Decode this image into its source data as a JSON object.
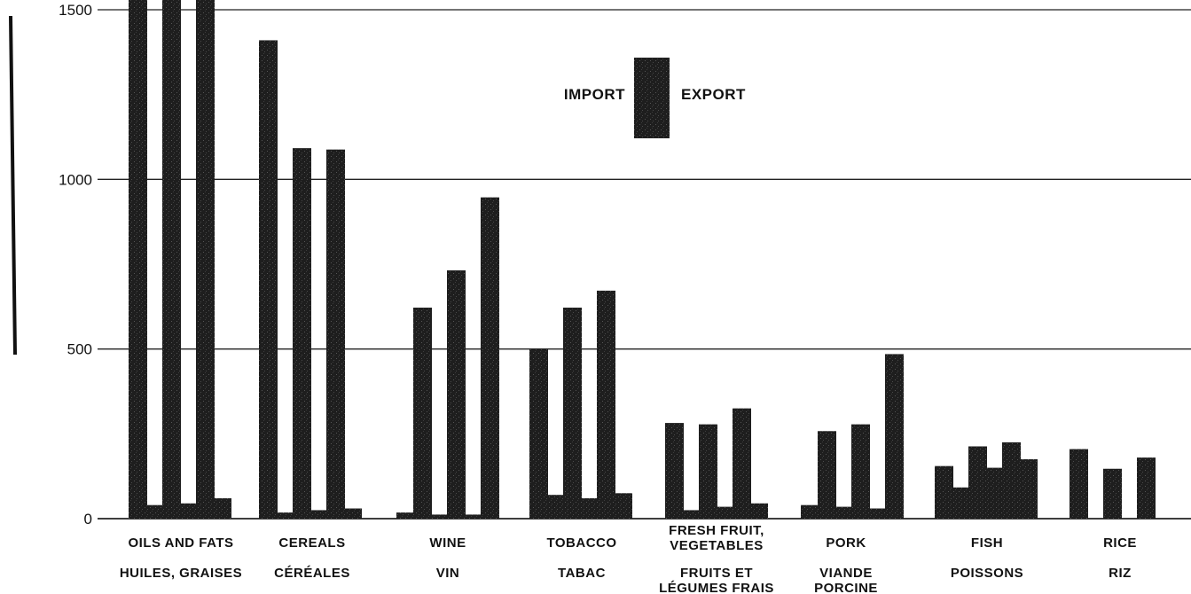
{
  "chart_data": {
    "type": "bar",
    "title": "",
    "xlabel": "",
    "ylabel": "",
    "ylim": [
      0,
      1500
    ],
    "yticks": [
      "0",
      "500",
      "1000",
      "1500"
    ],
    "grid": true,
    "legend": {
      "placement": "top-center",
      "labels": [
        "IMPORT",
        "EXPORT"
      ]
    },
    "colors": {
      "bar": "#1a1a1a",
      "light_bar": "#3a3a3a",
      "grid": "#222222"
    },
    "categories": [
      {
        "en": [
          "OILS AND FATS"
        ],
        "fr": [
          "HUILES, GRAISES"
        ],
        "values": [
          1560,
          40,
          1560,
          45,
          1560,
          60
        ]
      },
      {
        "en": [
          "CEREALS"
        ],
        "fr": [
          "CÉRÉALES"
        ],
        "values": [
          1410,
          18,
          1092,
          25,
          1088,
          30
        ]
      },
      {
        "en": [
          "WINE"
        ],
        "fr": [
          "VIN"
        ],
        "values": [
          18,
          622,
          12,
          732,
          12,
          947
        ]
      },
      {
        "en": [
          "TOBACCO"
        ],
        "fr": [
          "TABAC"
        ],
        "values": [
          500,
          70,
          622,
          60,
          672,
          75
        ]
      },
      {
        "en": [
          "FRESH FRUIT,",
          "VEGETABLES"
        ],
        "fr": [
          "FRUITS ET",
          "LÉGUMES FRAIS"
        ],
        "values": [
          282,
          25,
          278,
          35,
          325,
          45
        ]
      },
      {
        "en": [
          "PORK"
        ],
        "fr": [
          "VIANDE",
          "PORCINE"
        ],
        "values": [
          40,
          258,
          35,
          278,
          30,
          485
        ]
      },
      {
        "en": [
          "FISH"
        ],
        "fr": [
          "POISSONS"
        ],
        "values": [
          155,
          92,
          213,
          150,
          225,
          175
        ]
      },
      {
        "en": [
          "RICE"
        ],
        "fr": [
          "RIZ"
        ],
        "values": [
          205,
          0,
          147,
          0,
          180,
          0
        ]
      }
    ]
  }
}
